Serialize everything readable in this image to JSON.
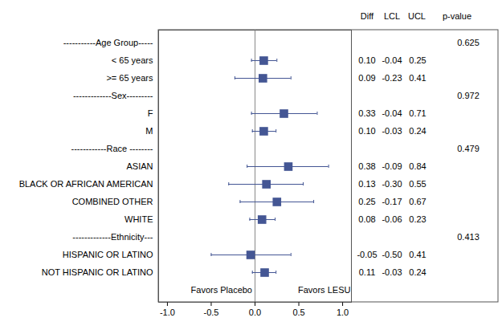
{
  "chart_data": {
    "type": "forest",
    "categories": [
      "-----------Age Group-----",
      "< 65 years",
      ">= 65 years",
      "-------------Sex---------",
      "F",
      "M",
      "------------Race --------",
      "ASIAN",
      "BLACK OR AFRICAN AMERICAN",
      "COMBINED OTHER",
      "WHITE",
      "-------------Ethnicity---",
      "HISPANIC OR LATINO",
      "NOT HISPANIC OR LATINO"
    ],
    "values": [
      null,
      0.1,
      0.09,
      null,
      0.33,
      0.1,
      null,
      0.38,
      0.13,
      0.25,
      0.08,
      null,
      -0.05,
      0.11
    ],
    "value_labels": [
      null,
      "0.10",
      "0.09",
      null,
      "0.33",
      "0.10",
      null,
      "0.38",
      "0.13",
      "0.25",
      "0.08",
      null,
      "-0.05",
      "0.11"
    ],
    "lower": [
      null,
      -0.04,
      -0.23,
      null,
      -0.04,
      -0.03,
      null,
      -0.09,
      -0.3,
      -0.17,
      -0.06,
      null,
      -0.5,
      -0.03
    ],
    "lower_labels": [
      null,
      "-0.04",
      "-0.23",
      null,
      "-0.04",
      "-0.03",
      null,
      "-0.09",
      "-0.30",
      "-0.17",
      "-0.06",
      null,
      "-0.50",
      "-0.03"
    ],
    "upper": [
      null,
      0.25,
      0.41,
      null,
      0.71,
      0.24,
      null,
      0.84,
      0.55,
      0.67,
      0.23,
      null,
      0.41,
      0.24
    ],
    "upper_labels": [
      null,
      "0.25",
      "0.41",
      null,
      "0.71",
      "0.24",
      null,
      "0.84",
      "0.55",
      "0.67",
      "0.23",
      null,
      "0.41",
      "0.24"
    ],
    "p_values": [
      0.625,
      null,
      null,
      0.972,
      null,
      null,
      0.479,
      null,
      null,
      null,
      null,
      0.413,
      null,
      null
    ],
    "columns": [
      "Diff",
      "LCL",
      "UCL",
      "p-value"
    ],
    "annotations": [
      "Favors Placebo",
      "Favors LESU"
    ],
    "reference_line": 0,
    "xlim": [
      -1.1,
      1.1
    ],
    "xticks": [
      {
        "value": -1,
        "label": "-1.0"
      },
      {
        "value": -0.5,
        "label": "-0.5"
      },
      {
        "value": 0,
        "label": "0.0"
      },
      {
        "value": 0.5,
        "label": "0.5"
      },
      {
        "value": 1,
        "label": "1.0"
      }
    ],
    "color": "#445694",
    "marker": "square"
  }
}
